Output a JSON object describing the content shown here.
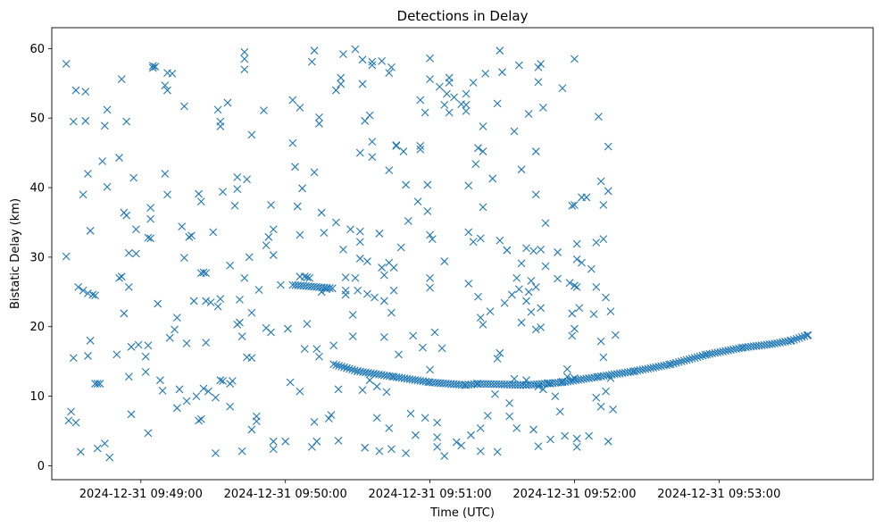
{
  "chart_data": {
    "type": "scatter",
    "title": "Detections in Delay",
    "xlabel": "Time (UTC)",
    "ylabel": "Bistatic Delay (km)",
    "marker": "x",
    "color": "#1f77b4",
    "x_unit": "seconds after 2024-12-31 09:48:00",
    "xlim": [
      23,
      364
    ],
    "ylim": [
      -2,
      63
    ],
    "xticks": [
      {
        "value": 60,
        "label": "2024-12-31 09:49:00"
      },
      {
        "value": 120,
        "label": "2024-12-31 09:50:00"
      },
      {
        "value": 180,
        "label": "2024-12-31 09:51:00"
      },
      {
        "value": 240,
        "label": "2024-12-31 09:52:00"
      },
      {
        "value": 300,
        "label": "2024-12-31 09:53:00"
      }
    ],
    "yticks": [
      {
        "value": 0,
        "label": "0"
      },
      {
        "value": 10,
        "label": "10"
      },
      {
        "value": 20,
        "label": "20"
      },
      {
        "value": 30,
        "label": "30"
      },
      {
        "value": 40,
        "label": "40"
      },
      {
        "value": 50,
        "label": "50"
      },
      {
        "value": 60,
        "label": "60"
      }
    ],
    "target_track": {
      "description": "dense band of detections forming the target trajectory",
      "segment_1": {
        "x_start": 123,
        "x_end": 140,
        "y_start": 26.0,
        "y_end": 25.5
      },
      "segment_2": {
        "x": [
          140,
          150,
          165,
          180,
          195,
          200,
          220,
          235,
          250,
          265,
          280,
          295,
          310,
          322,
          330,
          337
        ],
        "y": [
          14.6,
          13.6,
          12.8,
          12.0,
          11.6,
          11.8,
          11.6,
          12.0,
          12.8,
          13.6,
          14.6,
          16.0,
          17.0,
          17.5,
          18.0,
          18.8
        ]
      }
    },
    "points": [
      [
        29,
        57.8
      ],
      [
        29,
        30.1
      ],
      [
        30,
        6.5
      ],
      [
        31,
        7.8
      ],
      [
        32,
        15.5
      ],
      [
        32,
        49.5
      ],
      [
        33,
        54.0
      ],
      [
        33,
        6.2
      ],
      [
        34,
        25.7
      ],
      [
        35,
        2.0
      ],
      [
        36,
        39.0
      ],
      [
        36,
        25.2
      ],
      [
        37,
        53.8
      ],
      [
        37,
        49.6
      ],
      [
        38,
        24.8
      ],
      [
        38,
        15.8
      ],
      [
        38,
        42.0
      ],
      [
        39,
        33.8
      ],
      [
        39,
        18.0
      ],
      [
        40,
        24.6
      ],
      [
        41,
        24.5
      ],
      [
        41,
        11.8
      ],
      [
        42,
        11.8
      ],
      [
        43,
        11.8
      ],
      [
        42,
        2.5
      ],
      [
        44,
        43.8
      ],
      [
        45,
        48.9
      ],
      [
        45,
        3.2
      ],
      [
        46,
        51.2
      ],
      [
        46,
        40.1
      ],
      [
        47,
        1.2
      ],
      [
        50,
        16.0
      ],
      [
        51,
        27.0
      ],
      [
        51,
        44.3
      ],
      [
        52,
        27.2
      ],
      [
        52,
        55.6
      ],
      [
        53,
        21.9
      ],
      [
        53,
        36.4
      ],
      [
        54,
        36.0
      ],
      [
        54,
        49.5
      ],
      [
        55,
        30.6
      ],
      [
        55,
        25.7
      ],
      [
        55,
        12.8
      ],
      [
        56,
        7.4
      ],
      [
        56,
        17.1
      ],
      [
        57,
        41.4
      ],
      [
        58,
        34.0
      ],
      [
        58,
        30.5
      ],
      [
        59,
        17.4
      ],
      [
        62,
        13.5
      ],
      [
        62,
        15.7
      ],
      [
        63,
        17.3
      ],
      [
        63,
        4.7
      ],
      [
        63,
        32.8
      ],
      [
        64,
        32.7
      ],
      [
        64,
        35.5
      ],
      [
        64,
        37.1
      ],
      [
        65,
        57.5
      ],
      [
        65,
        57.2
      ],
      [
        66,
        57.4
      ],
      [
        67,
        23.3
      ],
      [
        68,
        12.3
      ],
      [
        69,
        10.8
      ],
      [
        70,
        54.7
      ],
      [
        70,
        42.0
      ],
      [
        71,
        56.5
      ],
      [
        71,
        39.0
      ],
      [
        71,
        54.0
      ],
      [
        72,
        18.4
      ],
      [
        73,
        56.4
      ],
      [
        74,
        19.6
      ],
      [
        75,
        21.3
      ],
      [
        75,
        8.3
      ],
      [
        76,
        11.0
      ],
      [
        77,
        34.4
      ],
      [
        78,
        51.7
      ],
      [
        78,
        29.9
      ],
      [
        79,
        17.6
      ],
      [
        79,
        9.3
      ],
      [
        80,
        32.9
      ],
      [
        81,
        33.1
      ],
      [
        82,
        23.7
      ],
      [
        83,
        10.0
      ],
      [
        84,
        39.1
      ],
      [
        84,
        6.5
      ],
      [
        85,
        6.7
      ],
      [
        85,
        38.0
      ],
      [
        85,
        27.7
      ],
      [
        86,
        27.8
      ],
      [
        86,
        11.1
      ],
      [
        87,
        27.7
      ],
      [
        87,
        23.7
      ],
      [
        87,
        17.7
      ],
      [
        88,
        10.7
      ],
      [
        89,
        23.5
      ],
      [
        90,
        33.6
      ],
      [
        91,
        1.8
      ],
      [
        91,
        9.8
      ],
      [
        92,
        51.2
      ],
      [
        92,
        22.9
      ],
      [
        93,
        24.0
      ],
      [
        93,
        12.3
      ],
      [
        93,
        48.8
      ],
      [
        93,
        49.5
      ],
      [
        94,
        39.4
      ],
      [
        94,
        12.2
      ],
      [
        96,
        52.2
      ],
      [
        97,
        11.8
      ],
      [
        97,
        8.5
      ],
      [
        97,
        28.8
      ],
      [
        98,
        12.2
      ],
      [
        99,
        37.4
      ],
      [
        100,
        41.5
      ],
      [
        100,
        39.8
      ],
      [
        100,
        20.3
      ],
      [
        101,
        23.9
      ],
      [
        101,
        20.6
      ],
      [
        102,
        18.6
      ],
      [
        102,
        2.1
      ],
      [
        103,
        57.0
      ],
      [
        103,
        59.5
      ],
      [
        103,
        58.5
      ],
      [
        103,
        27.0
      ],
      [
        104,
        15.6
      ],
      [
        104,
        41.2
      ],
      [
        105,
        30.0
      ],
      [
        106,
        15.5
      ],
      [
        106,
        22.0
      ],
      [
        106,
        47.6
      ],
      [
        106,
        5.2
      ],
      [
        108,
        6.4
      ],
      [
        108,
        7.1
      ],
      [
        109,
        25.3
      ],
      [
        111,
        51.1
      ],
      [
        112,
        31.7
      ],
      [
        112,
        19.8
      ],
      [
        113,
        32.9
      ],
      [
        114,
        19.2
      ],
      [
        114,
        37.5
      ],
      [
        115,
        3.5
      ],
      [
        115,
        2.4
      ],
      [
        115,
        34.0
      ],
      [
        115,
        30.3
      ],
      [
        118,
        26.0
      ],
      [
        120,
        3.5
      ],
      [
        121,
        19.7
      ],
      [
        122,
        12.0
      ],
      [
        123,
        52.6
      ],
      [
        123,
        46.4
      ],
      [
        124,
        43.0
      ],
      [
        125,
        37.3
      ],
      [
        126,
        27.2
      ],
      [
        126,
        51.5
      ],
      [
        126,
        33.2
      ],
      [
        126,
        10.7
      ],
      [
        127,
        39.9
      ],
      [
        128,
        27.2
      ],
      [
        128,
        16.8
      ],
      [
        129,
        27.1
      ],
      [
        129,
        20.4
      ],
      [
        130,
        27.0
      ],
      [
        131,
        58.1
      ],
      [
        131,
        2.7
      ],
      [
        132,
        59.7
      ],
      [
        132,
        42.2
      ],
      [
        132,
        6.3
      ],
      [
        133,
        3.5
      ],
      [
        133,
        16.8
      ],
      [
        134,
        15.7
      ],
      [
        134,
        49.2
      ],
      [
        134,
        50.1
      ],
      [
        135,
        36.4
      ],
      [
        135,
        25.0
      ],
      [
        136,
        33.5
      ],
      [
        137,
        25.4
      ],
      [
        138,
        6.8
      ],
      [
        139,
        7.3
      ],
      [
        140,
        17.3
      ],
      [
        141,
        35.0
      ],
      [
        141,
        54.0
      ],
      [
        142,
        11.0
      ],
      [
        142,
        3.6
      ],
      [
        143,
        54.9
      ],
      [
        143,
        55.8
      ],
      [
        144,
        59.2
      ],
      [
        144,
        31.1
      ],
      [
        145,
        24.6
      ],
      [
        145,
        27.1
      ],
      [
        145,
        25.2
      ],
      [
        147,
        34.0
      ],
      [
        148,
        21.7
      ],
      [
        148,
        18.6
      ],
      [
        149,
        59.9
      ],
      [
        149,
        27.0
      ],
      [
        150,
        25.2
      ],
      [
        151,
        45.0
      ],
      [
        151,
        33.7
      ],
      [
        151,
        32.2
      ],
      [
        151,
        29.8
      ],
      [
        152,
        10.9
      ],
      [
        152,
        58.4
      ],
      [
        152,
        54.9
      ],
      [
        153,
        49.6
      ],
      [
        153,
        2.6
      ],
      [
        154,
        29.4
      ],
      [
        154,
        24.7
      ],
      [
        155,
        50.4
      ],
      [
        155,
        12.3
      ],
      [
        156,
        58.1
      ],
      [
        156,
        57.6
      ],
      [
        156,
        46.6
      ],
      [
        156,
        44.4
      ],
      [
        157,
        24.2
      ],
      [
        158,
        6.9
      ],
      [
        158,
        11.4
      ],
      [
        159,
        2.1
      ],
      [
        159,
        33.4
      ],
      [
        160,
        58.2
      ],
      [
        160,
        28.5
      ],
      [
        161,
        27.4
      ],
      [
        161,
        23.7
      ],
      [
        161,
        18.5
      ],
      [
        162,
        10.6
      ],
      [
        163,
        56.5
      ],
      [
        163,
        42.5
      ],
      [
        163,
        29.2
      ],
      [
        163,
        5.4
      ],
      [
        164,
        2.4
      ],
      [
        164,
        57.3
      ],
      [
        164,
        22.0
      ],
      [
        165,
        25.2
      ],
      [
        165,
        28.5
      ],
      [
        166,
        46.1
      ],
      [
        166,
        46.0
      ],
      [
        167,
        16.0
      ],
      [
        168,
        31.4
      ],
      [
        169,
        45.2
      ],
      [
        170,
        1.8
      ],
      [
        170,
        40.4
      ],
      [
        171,
        35.2
      ],
      [
        172,
        7.5
      ],
      [
        173,
        18.7
      ],
      [
        174,
        4.4
      ],
      [
        175,
        38.0
      ],
      [
        176,
        46.0
      ],
      [
        176,
        45.5
      ],
      [
        176,
        52.6
      ],
      [
        177,
        17.0
      ],
      [
        178,
        6.9
      ],
      [
        178,
        50.8
      ],
      [
        179,
        40.4
      ],
      [
        179,
        36.6
      ],
      [
        180,
        58.6
      ],
      [
        180,
        55.6
      ],
      [
        180,
        33.2
      ],
      [
        180,
        27.0
      ],
      [
        180,
        25.6
      ],
      [
        180,
        13.8
      ],
      [
        181,
        32.6
      ],
      [
        182,
        19.2
      ],
      [
        183,
        4.1
      ],
      [
        183,
        2.7
      ],
      [
        183,
        6.2
      ],
      [
        184,
        54.5
      ],
      [
        185,
        16.9
      ],
      [
        186,
        29.4
      ],
      [
        186,
        51.9
      ],
      [
        186,
        1.4
      ],
      [
        187,
        53.5
      ],
      [
        188,
        55.8
      ],
      [
        188,
        55.1
      ],
      [
        188,
        50.8
      ],
      [
        190,
        53.0
      ],
      [
        191,
        3.4
      ],
      [
        193,
        52.0
      ],
      [
        193,
        2.9
      ],
      [
        195,
        53.5
      ],
      [
        195,
        51.9
      ],
      [
        195,
        51.0
      ],
      [
        196,
        40.3
      ],
      [
        196,
        26.2
      ],
      [
        196,
        33.6
      ],
      [
        197,
        4.4
      ],
      [
        198,
        32.2
      ],
      [
        198,
        55.1
      ],
      [
        199,
        43.4
      ],
      [
        200,
        24.3
      ],
      [
        200,
        45.7
      ],
      [
        201,
        21.3
      ],
      [
        201,
        32.7
      ],
      [
        201,
        5.4
      ],
      [
        201,
        2.1
      ],
      [
        202,
        45.2
      ],
      [
        202,
        20.3
      ],
      [
        202,
        48.8
      ],
      [
        202,
        37.2
      ],
      [
        203,
        56.4
      ],
      [
        204,
        7.2
      ],
      [
        205,
        22.2
      ],
      [
        206,
        41.3
      ],
      [
        207,
        10.3
      ],
      [
        208,
        52.1
      ],
      [
        208,
        15.4
      ],
      [
        208,
        2.0
      ],
      [
        209,
        32.4
      ],
      [
        209,
        59.7
      ],
      [
        209,
        16.2
      ],
      [
        210,
        56.6
      ],
      [
        211,
        23.4
      ],
      [
        212,
        31.0
      ],
      [
        212,
        31.0
      ],
      [
        213,
        9.0
      ],
      [
        213,
        7.1
      ],
      [
        214,
        24.6
      ],
      [
        215,
        48.1
      ],
      [
        215,
        12.5
      ],
      [
        216,
        27.0
      ],
      [
        216,
        5.4
      ],
      [
        217,
        57.6
      ],
      [
        217,
        25.4
      ],
      [
        218,
        42.6
      ],
      [
        218,
        29.1
      ],
      [
        218,
        20.6
      ],
      [
        220,
        31.3
      ],
      [
        220,
        23.7
      ],
      [
        220,
        12.3
      ],
      [
        221,
        50.6
      ],
      [
        221,
        25.0
      ],
      [
        222,
        22.1
      ],
      [
        222,
        26.6
      ],
      [
        223,
        5.2
      ],
      [
        223,
        30.9
      ],
      [
        224,
        45.2
      ],
      [
        224,
        39.0
      ],
      [
        224,
        25.7
      ],
      [
        224,
        19.6
      ],
      [
        225,
        11.4
      ],
      [
        225,
        2.8
      ],
      [
        225,
        57.3
      ],
      [
        225,
        55.2
      ],
      [
        226,
        57.8
      ],
      [
        226,
        31.1
      ],
      [
        226,
        22.7
      ],
      [
        226,
        19.9
      ],
      [
        227,
        51.5
      ],
      [
        227,
        11.0
      ],
      [
        228,
        34.9
      ],
      [
        228,
        28.7
      ],
      [
        229,
        11.9
      ],
      [
        230,
        3.8
      ],
      [
        230,
        11.8
      ],
      [
        232,
        10.0
      ],
      [
        233,
        30.7
      ],
      [
        233,
        26.9
      ],
      [
        234,
        7.8
      ],
      [
        235,
        54.3
      ],
      [
        235,
        12.1
      ],
      [
        236,
        4.3
      ],
      [
        237,
        13.9
      ],
      [
        237,
        12.8
      ],
      [
        238,
        26.3
      ],
      [
        239,
        18.7
      ],
      [
        239,
        21.9
      ],
      [
        239,
        12.4
      ],
      [
        239,
        37.4
      ],
      [
        240,
        37.5
      ],
      [
        240,
        58.5
      ],
      [
        240,
        25.9
      ],
      [
        240,
        12.6
      ],
      [
        240,
        19.7
      ],
      [
        241,
        2.7
      ],
      [
        241,
        3.9
      ],
      [
        241,
        31.9
      ],
      [
        241,
        29.7
      ],
      [
        241,
        25.7
      ],
      [
        242,
        22.7
      ],
      [
        243,
        38.6
      ],
      [
        243,
        29.2
      ],
      [
        245,
        38.6
      ],
      [
        246,
        4.3
      ],
      [
        247,
        28.3
      ],
      [
        248,
        21.8
      ],
      [
        249,
        25.7
      ],
      [
        249,
        32.1
      ],
      [
        249,
        9.8
      ],
      [
        250,
        50.2
      ],
      [
        251,
        40.9
      ],
      [
        251,
        17.9
      ],
      [
        251,
        8.5
      ],
      [
        252,
        15.6
      ],
      [
        252,
        32.6
      ],
      [
        252,
        37.5
      ],
      [
        253,
        24.2
      ],
      [
        253,
        10.7
      ],
      [
        254,
        39.5
      ],
      [
        254,
        45.9
      ],
      [
        254,
        3.5
      ],
      [
        255,
        12.6
      ],
      [
        255,
        22.2
      ],
      [
        256,
        8.1
      ],
      [
        257,
        18.8
      ]
    ]
  }
}
